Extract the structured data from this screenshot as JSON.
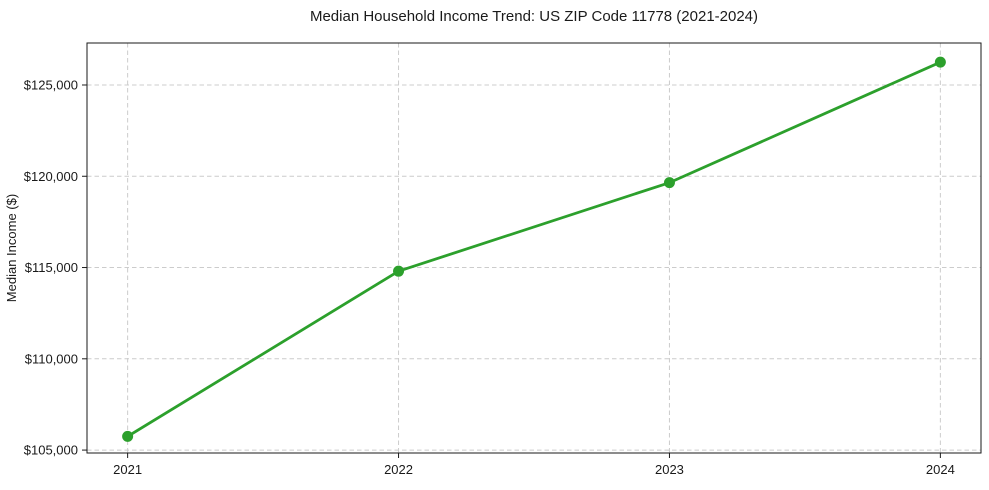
{
  "chart_data": {
    "type": "line",
    "title": "Median Household Income Trend: US ZIP Code 11778 (2021-2024)",
    "xlabel": "",
    "ylabel": "Median Income ($)",
    "series": [
      {
        "name": "Median Household Income",
        "x": [
          2021,
          2022,
          2023,
          2024
        ],
        "values": [
          105750,
          114800,
          119650,
          126250
        ]
      }
    ],
    "xticks": [
      2021,
      2022,
      2023,
      2024
    ],
    "xtick_labels": [
      "2021",
      "2022",
      "2023",
      "2024"
    ],
    "yticks": [
      105000,
      110000,
      115000,
      120000,
      125000
    ],
    "ytick_labels": [
      "$105,000",
      "$110,000",
      "$115,000",
      "$120,000",
      "$125,000"
    ],
    "xlim": [
      2020.85,
      2024.15
    ],
    "ylim": [
      104840,
      127300
    ],
    "grid": true,
    "grid_style": "dashed",
    "legend": false,
    "style": {
      "line_color": "#2ca02c",
      "marker_color": "#2ca02c",
      "grid_color": "#cccccc",
      "spine_color": "#1a1a1a",
      "tick_color": "#1a1a1a",
      "background": "#ffffff"
    }
  }
}
